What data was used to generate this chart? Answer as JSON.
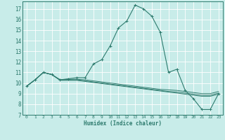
{
  "xlabel": "Humidex (Indice chaleur)",
  "bg_color": "#c8ece9",
  "grid_color": "#ffffff",
  "line_color": "#2e7b6e",
  "xlim": [
    -0.5,
    23.5
  ],
  "ylim": [
    7,
    17.7
  ],
  "yticks": [
    7,
    8,
    9,
    10,
    11,
    12,
    13,
    14,
    15,
    16,
    17
  ],
  "xticks": [
    0,
    1,
    2,
    3,
    4,
    5,
    6,
    7,
    8,
    9,
    10,
    11,
    12,
    13,
    14,
    15,
    16,
    17,
    18,
    19,
    20,
    21,
    22,
    23
  ],
  "main_line": {
    "x": [
      0,
      1,
      2,
      3,
      4,
      5,
      6,
      7,
      8,
      9,
      10,
      11,
      12,
      13,
      14,
      15,
      16,
      17,
      18,
      19,
      20,
      21,
      22,
      23
    ],
    "y": [
      9.7,
      10.3,
      11.0,
      10.8,
      10.3,
      10.4,
      10.5,
      10.5,
      11.8,
      12.2,
      13.5,
      15.2,
      15.85,
      17.35,
      17.0,
      16.3,
      14.8,
      11.0,
      11.3,
      9.3,
      8.5,
      7.5,
      7.5,
      9.0
    ]
  },
  "extra_lines": [
    {
      "x": [
        0,
        1,
        2,
        3,
        4,
        5,
        6,
        7,
        8,
        9,
        10,
        11,
        12,
        13,
        14,
        15,
        16,
        17,
        18,
        19,
        20,
        21,
        22,
        23
      ],
      "y": [
        9.7,
        10.3,
        11.0,
        10.8,
        10.3,
        10.35,
        10.35,
        10.3,
        10.2,
        10.1,
        10.0,
        9.9,
        9.8,
        9.7,
        9.6,
        9.5,
        9.4,
        9.35,
        9.3,
        9.2,
        9.1,
        9.0,
        9.0,
        9.2
      ]
    },
    {
      "x": [
        0,
        1,
        2,
        3,
        4,
        5,
        6,
        7,
        8,
        9,
        10,
        11,
        12,
        13,
        14,
        15,
        16,
        17,
        18,
        19,
        20,
        21,
        22,
        23
      ],
      "y": [
        9.7,
        10.3,
        11.0,
        10.8,
        10.3,
        10.3,
        10.3,
        10.2,
        10.1,
        10.0,
        9.9,
        9.8,
        9.7,
        9.6,
        9.5,
        9.4,
        9.3,
        9.2,
        9.15,
        9.05,
        8.95,
        8.85,
        8.85,
        9.05
      ]
    },
    {
      "x": [
        0,
        1,
        2,
        3,
        4,
        5,
        6,
        7,
        8,
        9,
        10,
        11,
        12,
        13,
        14,
        15,
        16,
        17,
        18,
        19,
        20,
        21,
        22,
        23
      ],
      "y": [
        9.7,
        10.3,
        11.0,
        10.8,
        10.25,
        10.25,
        10.25,
        10.15,
        10.05,
        9.95,
        9.85,
        9.75,
        9.65,
        9.55,
        9.45,
        9.35,
        9.25,
        9.15,
        9.05,
        8.95,
        8.85,
        8.75,
        8.75,
        8.95
      ]
    }
  ]
}
